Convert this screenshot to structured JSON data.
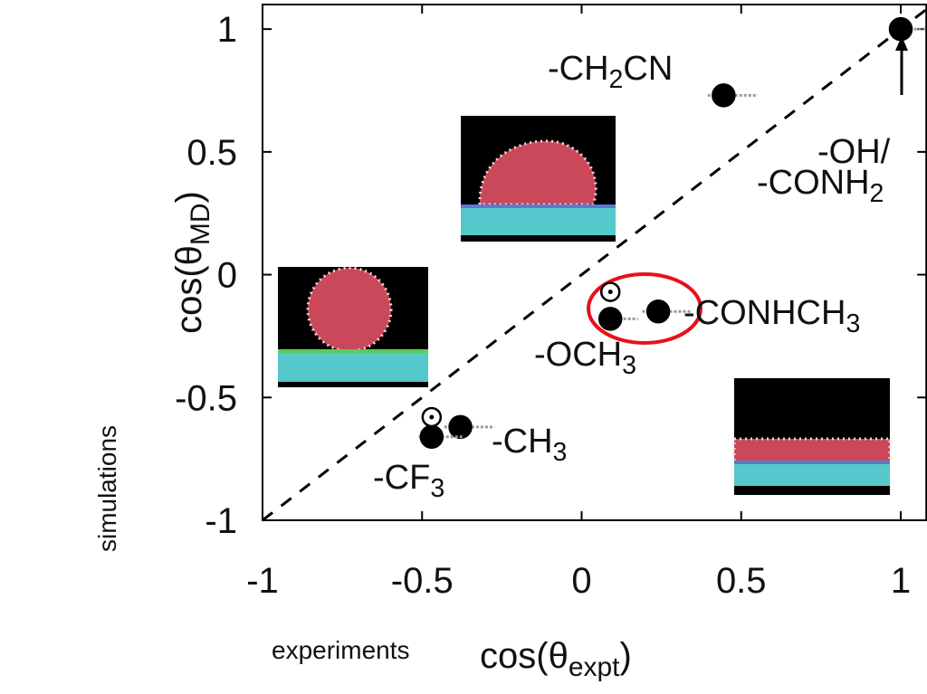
{
  "chart_data": {
    "type": "scatter",
    "x_label": [
      "cos(θ",
      "expt",
      ")"
    ],
    "y_label": [
      "cos(θ",
      "MD",
      ")"
    ],
    "x_note": "experiments",
    "y_note": "simulations",
    "xlim": [
      -1,
      1.08
    ],
    "ylim": [
      -1,
      1.1
    ],
    "xticks": [
      -1,
      -0.5,
      0,
      0.5,
      1
    ],
    "yticks": [
      -1,
      -0.5,
      0,
      0.5,
      1
    ],
    "series": [
      {
        "marker": "filled",
        "color": "#000000",
        "x": [
          1.0,
          0.445,
          0.09,
          0.24,
          -0.38,
          -0.47
        ],
        "values": [
          1.0,
          0.73,
          -0.18,
          -0.15,
          -0.62,
          -0.66
        ],
        "xerr": [
          0.03,
          0.05,
          0.03,
          0.05,
          0.05,
          0.04
        ]
      },
      {
        "marker": "open",
        "color": "#000000",
        "x": [
          0.09,
          -0.47
        ],
        "values": [
          -0.07,
          -0.58
        ]
      }
    ],
    "annotations": [
      [
        "-CH",
        "2",
        "CN"
      ],
      [
        "-OH/"
      ],
      [
        "-CONH",
        "2"
      ],
      [
        "-CONHCH",
        "3"
      ],
      [
        "-OCH",
        "3"
      ],
      [
        "-CH",
        "3"
      ],
      [
        "-CF",
        "3"
      ]
    ]
  }
}
